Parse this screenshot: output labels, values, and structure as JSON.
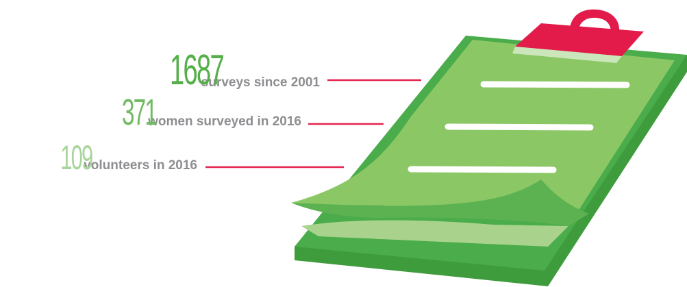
{
  "stats": [
    {
      "number": "1687",
      "label": "surveys since 2001"
    },
    {
      "number": "371",
      "label": "women surveyed in 2016"
    },
    {
      "number": "109",
      "label": "volunteers in 2016"
    }
  ],
  "colors": {
    "number_primary": "#55b04a",
    "number_secondary": "#72bb63",
    "number_tertiary": "#a9d59c",
    "label_text": "#8e8e92",
    "connector_line": "#e3244f",
    "clipboard_board": "#4aac4a",
    "clipboard_paper": "#8cc766",
    "clipboard_clip": "#e31b4b",
    "paper_lines": "#ffffff"
  },
  "icons": {
    "illustration": "clipboard-icon"
  }
}
